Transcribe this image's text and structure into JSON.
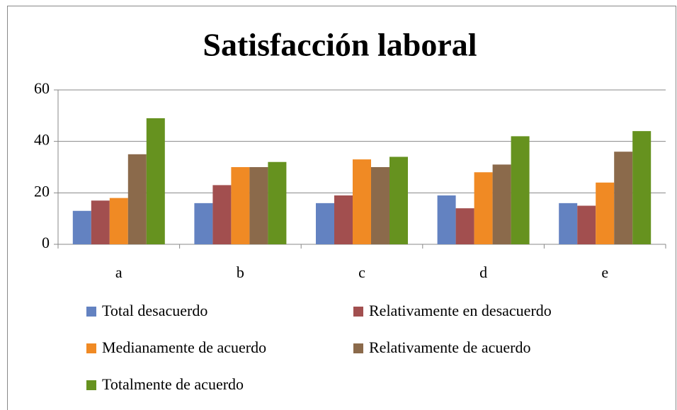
{
  "chart_data": {
    "type": "bar",
    "title": "Satisfacción laboral",
    "categories": [
      "a",
      "b",
      "c",
      "d",
      "e"
    ],
    "series": [
      {
        "name": "Total desacuerdo",
        "color": "#6382c1",
        "values": [
          13,
          16,
          16,
          19,
          16
        ]
      },
      {
        "name": "Relativamente en desacuerdo",
        "color": "#a24f4f",
        "values": [
          17,
          23,
          19,
          14,
          15
        ]
      },
      {
        "name": "Medianamente de acuerdo",
        "color": "#f08a24",
        "values": [
          18,
          30,
          33,
          28,
          24
        ]
      },
      {
        "name": "Relativamente de acuerdo",
        "color": "#8b6a4b",
        "values": [
          35,
          30,
          30,
          31,
          36
        ]
      },
      {
        "name": "Totalmente de acuerdo",
        "color": "#66921f",
        "values": [
          49,
          32,
          34,
          42,
          44
        ]
      }
    ],
    "ylim": [
      0,
      60
    ],
    "yticks": [
      0,
      20,
      40,
      60
    ],
    "grid": true,
    "legend": "bottom"
  }
}
